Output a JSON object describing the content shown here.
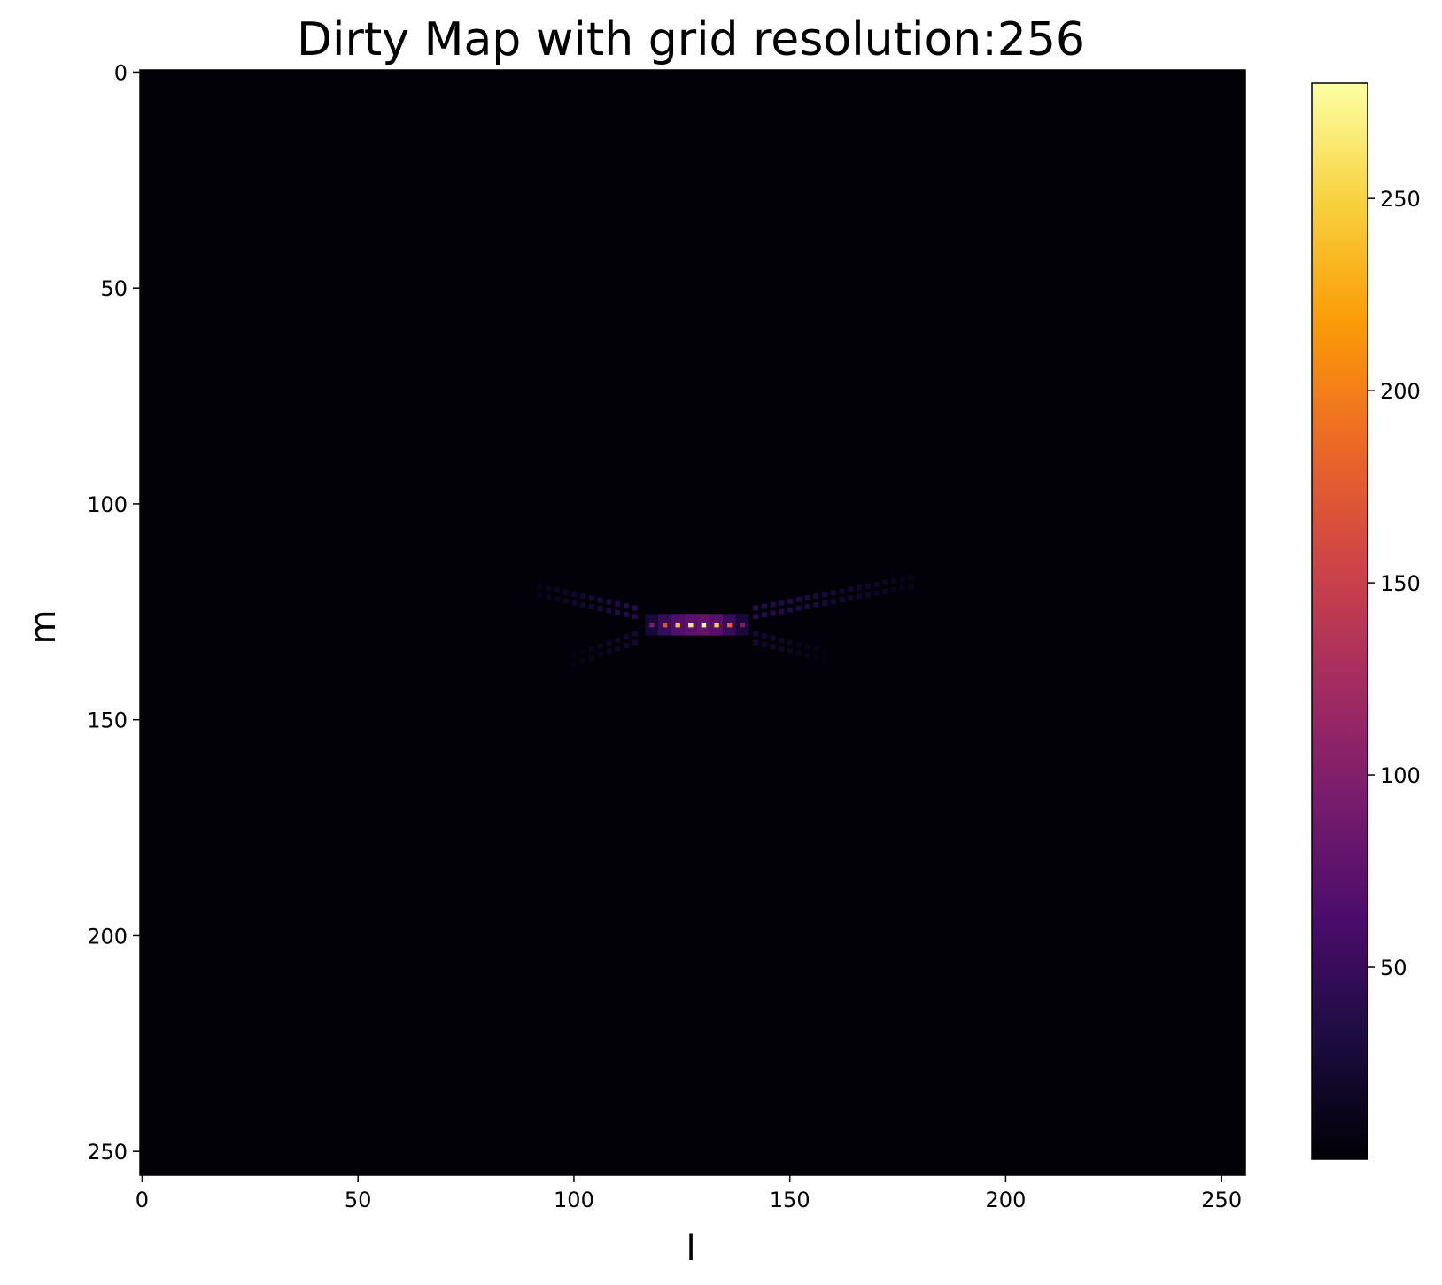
{
  "chart_data": {
    "type": "heatmap",
    "title": "Dirty Map with grid resolution:256",
    "xlabel": "l",
    "ylabel": "m",
    "xlim": [
      -0.5,
      255.5
    ],
    "ylim": [
      255.5,
      -0.5
    ],
    "x_ticks": [
      0,
      50,
      100,
      150,
      200,
      250
    ],
    "y_ticks": [
      0,
      50,
      100,
      150,
      200,
      250
    ],
    "x_tick_labels": [
      "0",
      "50",
      "100",
      "150",
      "200",
      "250"
    ],
    "y_tick_labels": [
      "0",
      "50",
      "100",
      "150",
      "200",
      "250"
    ],
    "y_axis_inverted": true,
    "grid": false,
    "grid_resolution": 256,
    "colormap": "inferno",
    "colormap_stops": [
      "#000004",
      "#1b0c41",
      "#4a0c6b",
      "#781c6d",
      "#a52c60",
      "#cf4446",
      "#ed6925",
      "#fb9b06",
      "#f7d13d",
      "#fcffa4"
    ],
    "colorbar": {
      "range": [
        0,
        280
      ],
      "ticks": [
        50,
        100,
        150,
        200,
        250
      ],
      "tick_labels": [
        "50",
        "100",
        "150",
        "200",
        "250"
      ]
    },
    "background_value": 2,
    "peaks": [
      {
        "l": 118,
        "m": 128,
        "value": 95
      },
      {
        "l": 121,
        "m": 128,
        "value": 170
      },
      {
        "l": 124,
        "m": 128,
        "value": 240
      },
      {
        "l": 127,
        "m": 128,
        "value": 265
      },
      {
        "l": 130,
        "m": 128,
        "value": 280
      },
      {
        "l": 133,
        "m": 128,
        "value": 250
      },
      {
        "l": 136,
        "m": 128,
        "value": 180
      },
      {
        "l": 139,
        "m": 128,
        "value": 95
      }
    ],
    "sidelobe_arms": [
      {
        "from": [
          114,
          125
        ],
        "to": [
          92,
          120
        ],
        "value": 50
      },
      {
        "from": [
          142,
          125
        ],
        "to": [
          178,
          118
        ],
        "value": 50
      },
      {
        "from": [
          114,
          131
        ],
        "to": [
          100,
          136
        ],
        "value": 30
      },
      {
        "from": [
          142,
          131
        ],
        "to": [
          158,
          135
        ],
        "value": 30
      }
    ]
  }
}
